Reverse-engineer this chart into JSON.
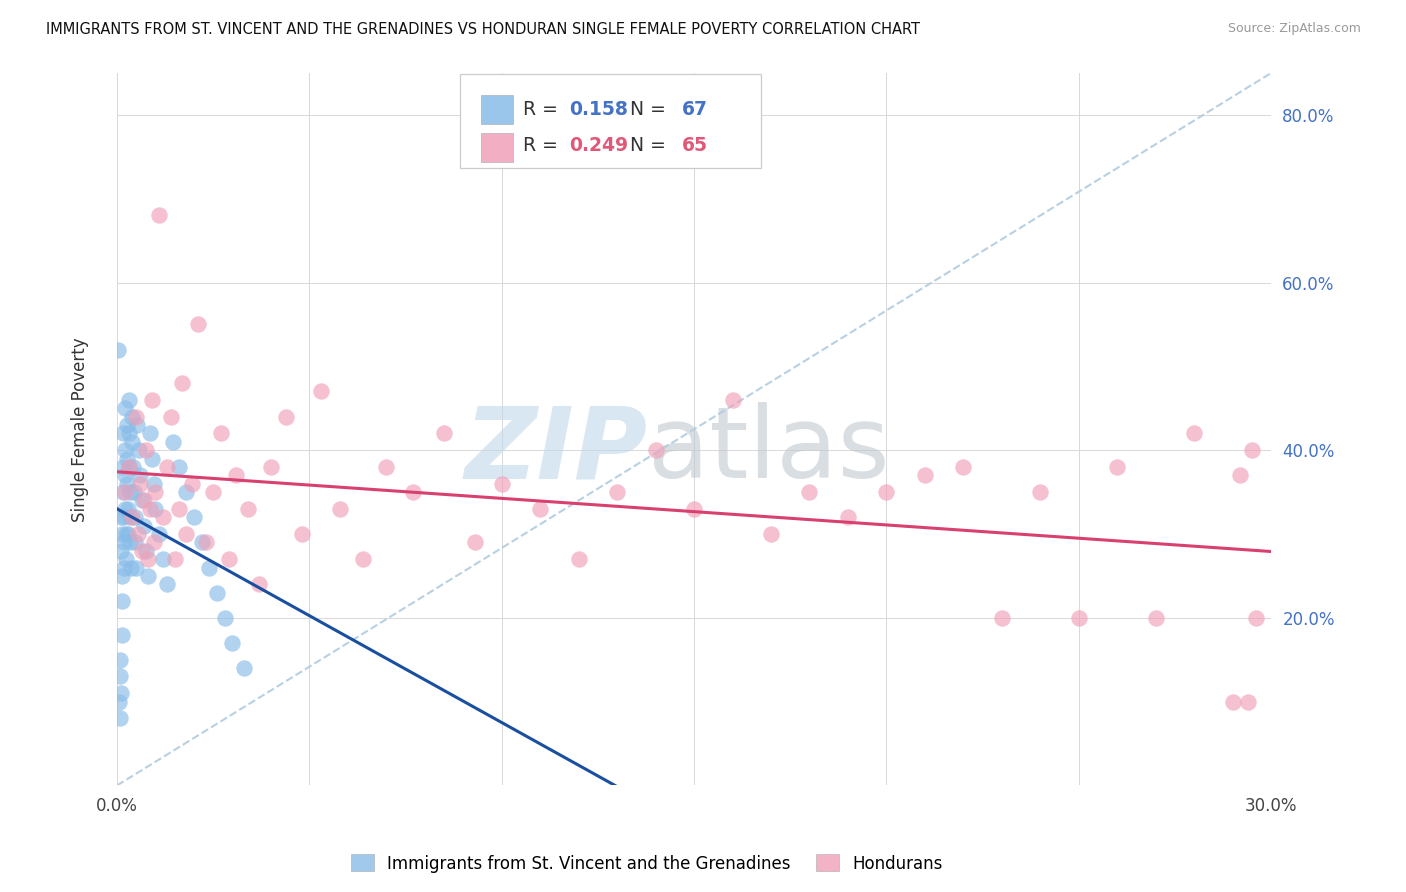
{
  "title": "IMMIGRANTS FROM ST. VINCENT AND THE GRENADINES VS HONDURAN SINGLE FEMALE POVERTY CORRELATION CHART",
  "source": "Source: ZipAtlas.com",
  "ylabel": "Single Female Poverty",
  "blue_scatter_color": "#88bce8",
  "pink_scatter_color": "#f0a0b8",
  "blue_line_color": "#1a4fa0",
  "pink_line_color": "#d84070",
  "dashed_line_color": "#b0cce0",
  "watermark_zip_color": "#c0d8ea",
  "watermark_atlas_color": "#c0c8d0",
  "R_blue": 0.158,
  "N_blue": 67,
  "R_pink": 0.249,
  "N_pink": 65,
  "legend_color_blue": "#4472c4",
  "legend_color_pink": "#e05878",
  "right_axis_color": "#4472c4",
  "x_max": 0.3,
  "y_max": 0.85,
  "blue_x": [
    0.0003,
    0.0005,
    0.0007,
    0.0008,
    0.0009,
    0.001,
    0.001,
    0.0011,
    0.0012,
    0.0013,
    0.0013,
    0.0014,
    0.0015,
    0.0015,
    0.0016,
    0.0017,
    0.0018,
    0.0019,
    0.002,
    0.002,
    0.0021,
    0.0022,
    0.0023,
    0.0024,
    0.0025,
    0.0026,
    0.0027,
    0.0028,
    0.0029,
    0.003,
    0.0031,
    0.0032,
    0.0033,
    0.0034,
    0.0035,
    0.0036,
    0.0038,
    0.004,
    0.0042,
    0.0044,
    0.0046,
    0.0048,
    0.005,
    0.0053,
    0.0056,
    0.006,
    0.0065,
    0.007,
    0.0075,
    0.008,
    0.0085,
    0.009,
    0.0095,
    0.01,
    0.011,
    0.012,
    0.013,
    0.0145,
    0.016,
    0.018,
    0.02,
    0.022,
    0.024,
    0.026,
    0.028,
    0.03,
    0.033
  ],
  "blue_y": [
    0.52,
    0.1,
    0.13,
    0.08,
    0.15,
    0.11,
    0.32,
    0.28,
    0.3,
    0.25,
    0.22,
    0.18,
    0.42,
    0.38,
    0.35,
    0.32,
    0.29,
    0.26,
    0.45,
    0.4,
    0.37,
    0.33,
    0.3,
    0.27,
    0.43,
    0.39,
    0.36,
    0.33,
    0.3,
    0.46,
    0.42,
    0.38,
    0.35,
    0.32,
    0.29,
    0.26,
    0.44,
    0.41,
    0.38,
    0.35,
    0.32,
    0.29,
    0.26,
    0.43,
    0.4,
    0.37,
    0.34,
    0.31,
    0.28,
    0.25,
    0.42,
    0.39,
    0.36,
    0.33,
    0.3,
    0.27,
    0.24,
    0.41,
    0.38,
    0.35,
    0.32,
    0.29,
    0.26,
    0.23,
    0.2,
    0.17,
    0.14
  ],
  "pink_x": [
    0.002,
    0.003,
    0.004,
    0.005,
    0.0055,
    0.006,
    0.0065,
    0.007,
    0.0075,
    0.008,
    0.0085,
    0.009,
    0.0095,
    0.01,
    0.011,
    0.012,
    0.013,
    0.014,
    0.015,
    0.016,
    0.017,
    0.018,
    0.0195,
    0.021,
    0.023,
    0.025,
    0.027,
    0.029,
    0.031,
    0.034,
    0.037,
    0.04,
    0.044,
    0.048,
    0.053,
    0.058,
    0.064,
    0.07,
    0.077,
    0.085,
    0.093,
    0.1,
    0.11,
    0.12,
    0.13,
    0.14,
    0.15,
    0.16,
    0.17,
    0.18,
    0.19,
    0.2,
    0.21,
    0.22,
    0.23,
    0.24,
    0.25,
    0.26,
    0.27,
    0.28,
    0.29,
    0.292,
    0.294,
    0.295,
    0.296
  ],
  "pink_y": [
    0.35,
    0.38,
    0.32,
    0.44,
    0.3,
    0.36,
    0.28,
    0.34,
    0.4,
    0.27,
    0.33,
    0.46,
    0.29,
    0.35,
    0.68,
    0.32,
    0.38,
    0.44,
    0.27,
    0.33,
    0.48,
    0.3,
    0.36,
    0.55,
    0.29,
    0.35,
    0.42,
    0.27,
    0.37,
    0.33,
    0.24,
    0.38,
    0.44,
    0.3,
    0.47,
    0.33,
    0.27,
    0.38,
    0.35,
    0.42,
    0.29,
    0.36,
    0.33,
    0.27,
    0.35,
    0.4,
    0.33,
    0.46,
    0.3,
    0.35,
    0.32,
    0.35,
    0.37,
    0.38,
    0.2,
    0.35,
    0.2,
    0.38,
    0.2,
    0.42,
    0.1,
    0.37,
    0.1,
    0.4,
    0.2
  ]
}
